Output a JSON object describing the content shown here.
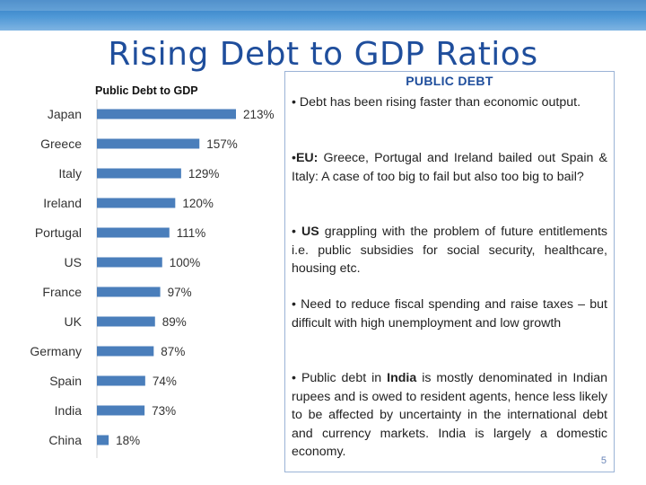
{
  "slide": {
    "title": "Rising Debt to GDP Ratios",
    "page_number": "5",
    "colors": {
      "title": "#1f4e9c",
      "top_bar": "#3a86cc",
      "bar": "#4a7ebb",
      "box_border": "#9bb3d6"
    }
  },
  "chart_data": {
    "type": "bar",
    "orientation": "horizontal",
    "title": "Public Debt to GDP",
    "categories": [
      "Japan",
      "Greece",
      "Italy",
      "Ireland",
      "Portugal",
      "US",
      "France",
      "UK",
      "Germany",
      "Spain",
      "India",
      "China"
    ],
    "values": [
      213,
      157,
      129,
      120,
      111,
      100,
      97,
      89,
      87,
      74,
      73,
      18
    ],
    "value_labels": [
      "213%",
      "157%",
      "129%",
      "120%",
      "111%",
      "100%",
      "97%",
      "89%",
      "87%",
      "74%",
      "73%",
      "18%"
    ],
    "unit": "%",
    "xlim": [
      0,
      213
    ],
    "grid": false,
    "legend": "none"
  },
  "panel": {
    "title": "PUBLIC DEBT",
    "bullets": [
      {
        "marker": "• ",
        "bold": "",
        "text": "Debt has been rising faster than economic output.",
        "bold_mid": "",
        "text_after": ""
      },
      {
        "marker": "•",
        "bold": "EU:",
        "text": " Greece, Portugal and Ireland bailed out Spain & Italy: A case of too big to fail but also too big to bail?",
        "bold_mid": "",
        "text_after": ""
      },
      {
        "marker": "• ",
        "bold": "US",
        "text": " grappling with the problem of future entitlements i.e. public subsidies for social security, healthcare, housing etc.",
        "bold_mid": "",
        "text_after": ""
      },
      {
        "marker": "• ",
        "bold": "",
        "text": "Need to reduce fiscal spending and raise taxes – but difficult with high unemployment and low growth",
        "bold_mid": "",
        "text_after": ""
      },
      {
        "marker": "• ",
        "bold": "",
        "text": "Public debt in ",
        "bold_mid": "India",
        "text_after": " is mostly denominated in Indian rupees and is owed to resident agents, hence less likely to be affected by uncertainty in the international debt and currency markets. India is largely a domestic economy."
      }
    ]
  }
}
